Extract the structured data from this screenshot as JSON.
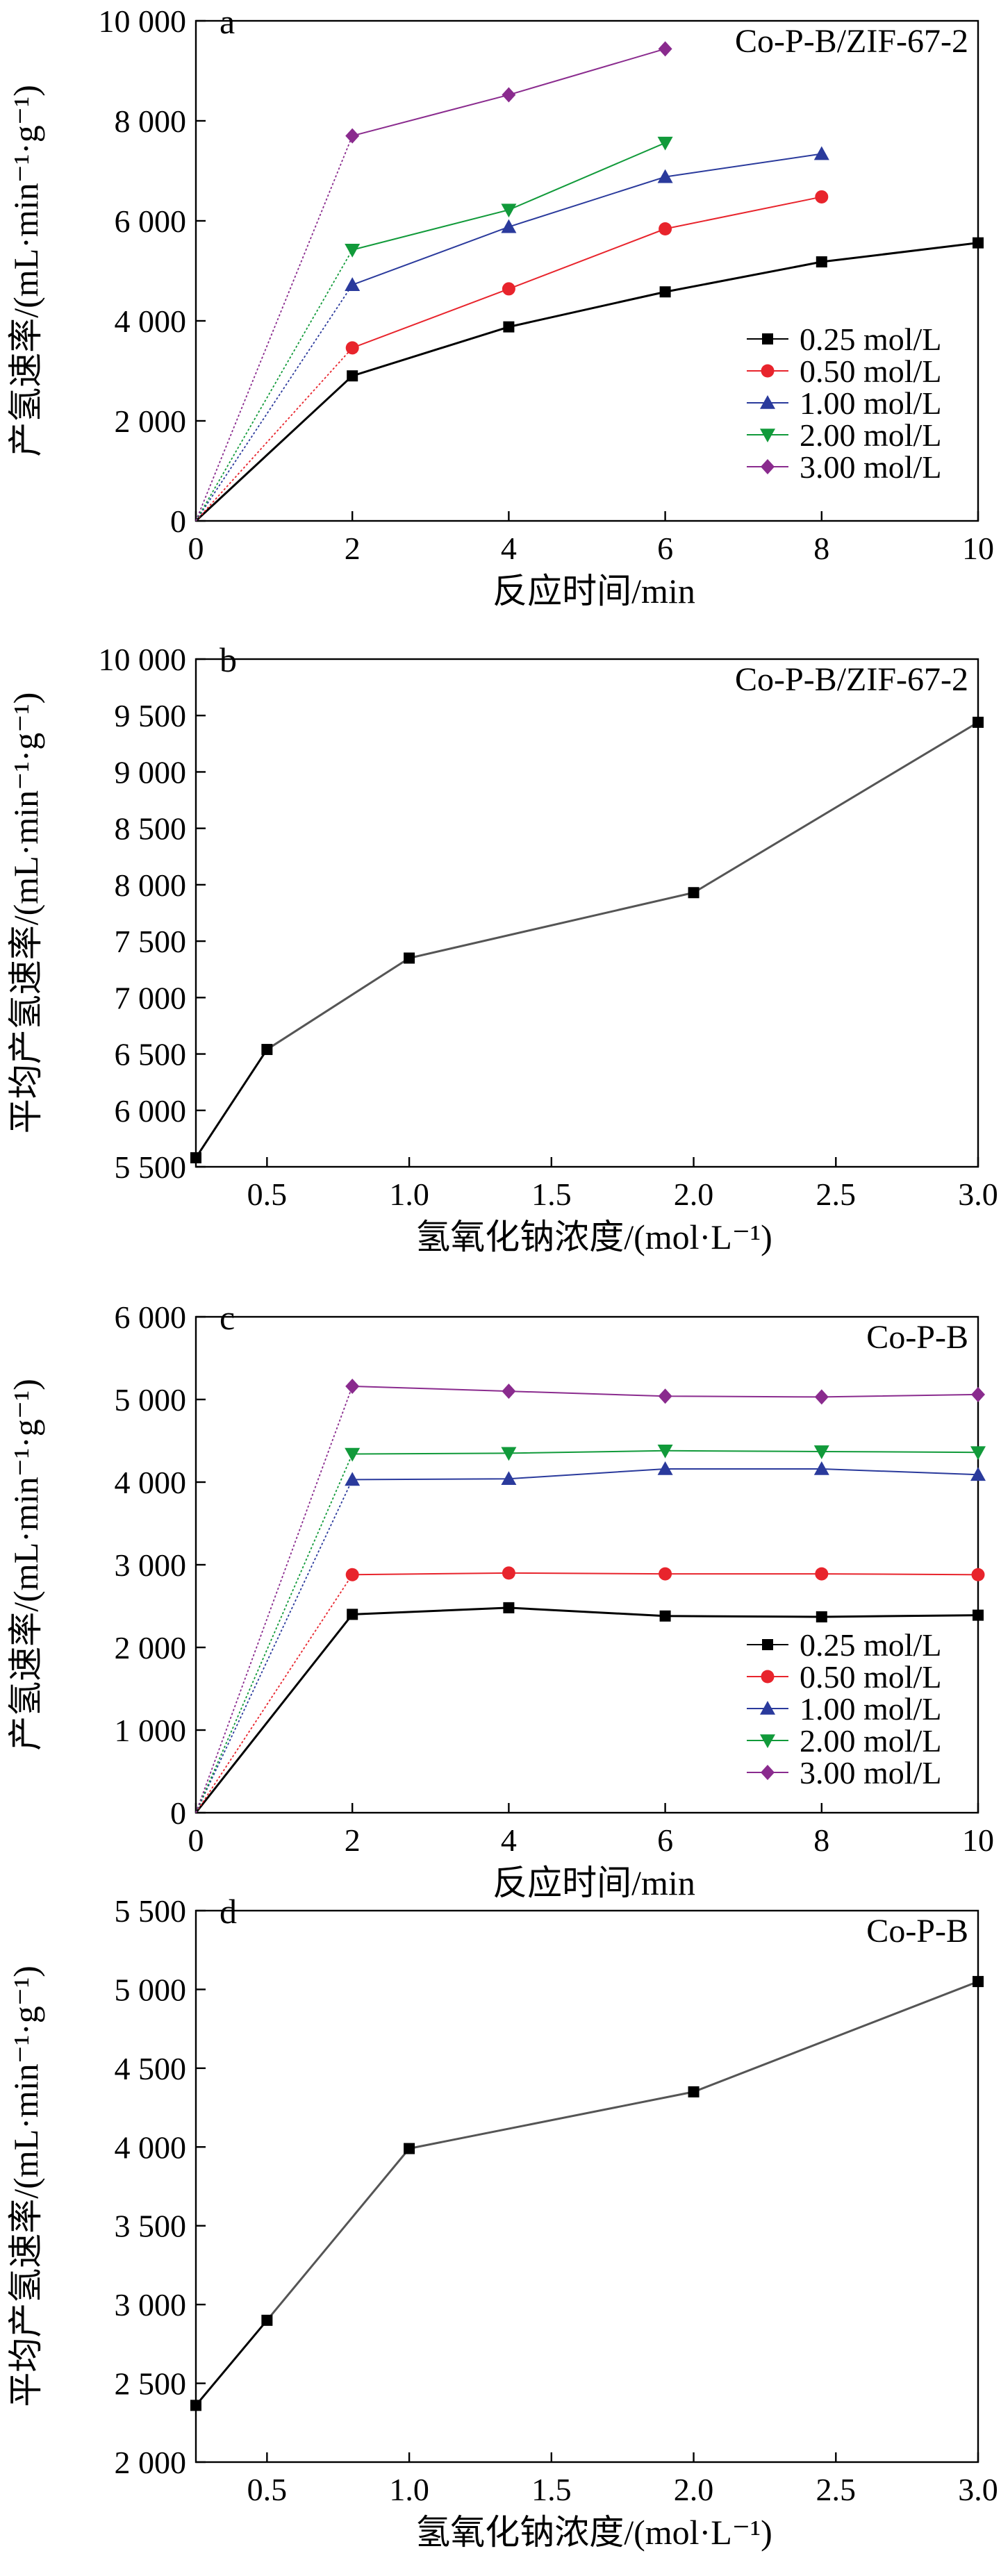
{
  "chart_data": [
    {
      "type": "line",
      "panel_label": "a",
      "annotation": "Co-P-B/ZIF-67-2",
      "xlabel": "反应时间/min",
      "ylabel": "产氢速率/(mL·min⁻¹·g⁻¹)",
      "xlim": [
        0,
        10
      ],
      "ylim": [
        0,
        10000
      ],
      "xticks": [
        0,
        2,
        4,
        6,
        8,
        10
      ],
      "xtick_labels": [
        "0",
        "2",
        "4",
        "6",
        "8",
        "10"
      ],
      "yticks": [
        0,
        2000,
        4000,
        6000,
        8000,
        10000
      ],
      "ytick_labels": [
        "0",
        "2 000",
        "4 000",
        "6 000",
        "8 000",
        "10 000"
      ],
      "legend": "right",
      "series": [
        {
          "name": "0.25 mol/L",
          "color": "#000000",
          "marker": "square",
          "x": [
            0,
            2,
            4,
            6,
            8,
            10
          ],
          "y": [
            0,
            2900,
            3880,
            4580,
            5180,
            5560
          ]
        },
        {
          "name": "0.50 mol/L",
          "color": "#e8242c",
          "marker": "circle",
          "x": [
            0,
            2,
            4,
            6,
            8
          ],
          "y": [
            0,
            3460,
            4640,
            5840,
            6480
          ]
        },
        {
          "name": "1.00 mol/L",
          "color": "#2a3a9c",
          "marker": "triangle-up",
          "x": [
            0,
            2,
            4,
            6,
            8
          ],
          "y": [
            0,
            4720,
            5880,
            6880,
            7340
          ]
        },
        {
          "name": "2.00 mol/L",
          "color": "#119a3a",
          "marker": "triangle-down",
          "x": [
            0,
            2,
            4,
            6
          ],
          "y": [
            0,
            5420,
            6220,
            7560
          ]
        },
        {
          "name": "3.00 mol/L",
          "color": "#8a2b8e",
          "marker": "diamond",
          "x": [
            0,
            2,
            4,
            6
          ],
          "y": [
            0,
            7700,
            8520,
            9440
          ]
        }
      ]
    },
    {
      "type": "line",
      "panel_label": "b",
      "annotation": "Co-P-B/ZIF-67-2",
      "xlabel": "氢氧化钠浓度/(mol·L⁻¹)",
      "ylabel": "平均产氢速率/(mL·min⁻¹·g⁻¹)",
      "xlim": [
        0.25,
        3.0
      ],
      "ylim": [
        5500,
        10000
      ],
      "xticks": [
        0.5,
        1.0,
        1.5,
        2.0,
        2.5,
        3.0
      ],
      "xtick_labels": [
        "0.5",
        "1.0",
        "1.5",
        "2.0",
        "2.5",
        "3.0"
      ],
      "yticks": [
        5500,
        6000,
        6500,
        7000,
        7500,
        8000,
        8500,
        9000,
        9500,
        10000
      ],
      "ytick_labels": [
        "5 500",
        "6 000",
        "6 500",
        "7 000",
        "7 500",
        "8 000",
        "8 500",
        "9 000",
        "9 500",
        "10 000"
      ],
      "series": [
        {
          "color": "#000000",
          "marker": "square",
          "x": [
            0.25,
            0.5,
            1.0,
            2.0,
            3.0
          ],
          "y": [
            5580,
            6540,
            7350,
            7930,
            9440
          ]
        }
      ]
    },
    {
      "type": "line",
      "panel_label": "c",
      "annotation": "Co-P-B",
      "xlabel": "反应时间/min",
      "ylabel": "产氢速率/(mL·min⁻¹·g⁻¹)",
      "xlim": [
        0,
        10
      ],
      "ylim": [
        0,
        6000
      ],
      "xticks": [
        0,
        2,
        4,
        6,
        8,
        10
      ],
      "xtick_labels": [
        "0",
        "2",
        "4",
        "6",
        "8",
        "10"
      ],
      "yticks": [
        0,
        1000,
        2000,
        3000,
        4000,
        5000,
        6000
      ],
      "ytick_labels": [
        "0",
        "1 000",
        "2 000",
        "3 000",
        "4 000",
        "5 000",
        "6 000"
      ],
      "legend": "bottom-right",
      "series": [
        {
          "name": "0.25 mol/L",
          "color": "#000000",
          "marker": "square",
          "x": [
            0,
            2,
            4,
            6,
            8,
            10
          ],
          "y": [
            0,
            2400,
            2480,
            2380,
            2370,
            2390
          ]
        },
        {
          "name": "0.50 mol/L",
          "color": "#e8242c",
          "marker": "circle",
          "x": [
            0,
            2,
            4,
            6,
            8,
            10
          ],
          "y": [
            0,
            2880,
            2900,
            2890,
            2890,
            2880
          ]
        },
        {
          "name": "1.00 mol/L",
          "color": "#2a3a9c",
          "marker": "triangle-up",
          "x": [
            0,
            2,
            4,
            6,
            8,
            10
          ],
          "y": [
            0,
            4030,
            4040,
            4160,
            4160,
            4090
          ]
        },
        {
          "name": "2.00 mol/L",
          "color": "#119a3a",
          "marker": "triangle-down",
          "x": [
            0,
            2,
            4,
            6,
            8,
            10
          ],
          "y": [
            0,
            4340,
            4350,
            4380,
            4370,
            4360
          ]
        },
        {
          "name": "3.00 mol/L",
          "color": "#8a2b8e",
          "marker": "diamond",
          "x": [
            0,
            2,
            4,
            6,
            8,
            10
          ],
          "y": [
            0,
            5160,
            5100,
            5040,
            5030,
            5060
          ]
        }
      ]
    },
    {
      "type": "line",
      "panel_label": "d",
      "annotation": "Co-P-B",
      "xlabel": "氢氧化钠浓度/(mol·L⁻¹)",
      "ylabel": "平均产氢速率/(mL·min⁻¹·g⁻¹)",
      "xlim": [
        0.25,
        3.0
      ],
      "ylim": [
        2000,
        5500
      ],
      "xticks": [
        0.5,
        1.0,
        1.5,
        2.0,
        2.5,
        3.0
      ],
      "xtick_labels": [
        "0.5",
        "1.0",
        "1.5",
        "2.0",
        "2.5",
        "3.0"
      ],
      "yticks": [
        2000,
        2500,
        3000,
        3500,
        4000,
        4500,
        5000,
        5500
      ],
      "ytick_labels": [
        "2 000",
        "2 500",
        "3 000",
        "3 500",
        "4 000",
        "4 500",
        "5 000",
        "5 500"
      ],
      "series": [
        {
          "color": "#000000",
          "marker": "square",
          "x": [
            0.25,
            0.5,
            1.0,
            2.0,
            3.0
          ],
          "y": [
            2360,
            2900,
            3990,
            4350,
            5050
          ]
        }
      ]
    }
  ]
}
